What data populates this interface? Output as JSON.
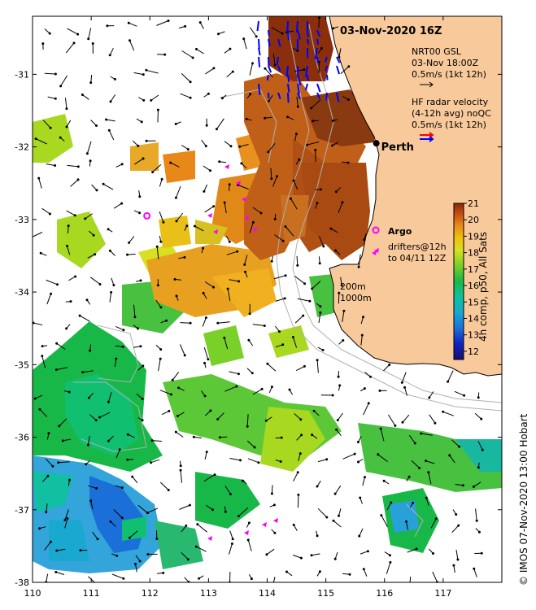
{
  "title": "03-Nov-2020 16Z",
  "legend": {
    "model_lines": [
      "NRT00 GSL",
      "03-Nov 18:00Z",
      "0.5m/s (1kt 12h)"
    ],
    "radar_lines": [
      "HF radar velocity",
      "(4-12h avg) noQC",
      "0.5m/s (1kt 12h)"
    ],
    "argo_label": "Argo",
    "drifter_lines": [
      "drifters@12h",
      "to 04/11 12Z"
    ],
    "isobaths": [
      "200m",
      "1000m"
    ]
  },
  "place": {
    "name": "Perth",
    "lon": 115.86,
    "lat": -31.95
  },
  "argo_float": {
    "lon": 111.95,
    "lat": -32.95
  },
  "colorbar": {
    "label": "4h comp, p50, All Sats",
    "min": 11.5,
    "max": 21,
    "ticks": [
      12,
      13,
      14,
      15,
      16,
      17,
      18,
      19,
      20,
      21
    ],
    "colors": [
      "#1a1070",
      "#1020c0",
      "#1a70d8",
      "#18a8d0",
      "#10c0a0",
      "#18b848",
      "#78d028",
      "#d8e020",
      "#f0c010",
      "#e88818",
      "#c85010",
      "#8a2808"
    ]
  },
  "axes": {
    "lon_range": [
      110,
      118
    ],
    "lat_range": [
      -38,
      -30.2
    ],
    "lon_ticks": [
      110,
      111,
      112,
      113,
      114,
      115,
      116,
      117
    ],
    "lat_ticks": [
      -31,
      -32,
      -33,
      -34,
      -35,
      -36,
      -37,
      -38
    ]
  },
  "credit": "© IMOS 07-Nov-2020 13:00 Hobart",
  "colors": {
    "land": "#f8c99a",
    "model_arrow": "#000000",
    "radar_arrow_a": "#0000ff",
    "radar_arrow_b": "#ff0000",
    "drifter": "#ff00ff",
    "isobath": "#b0b0b0"
  }
}
